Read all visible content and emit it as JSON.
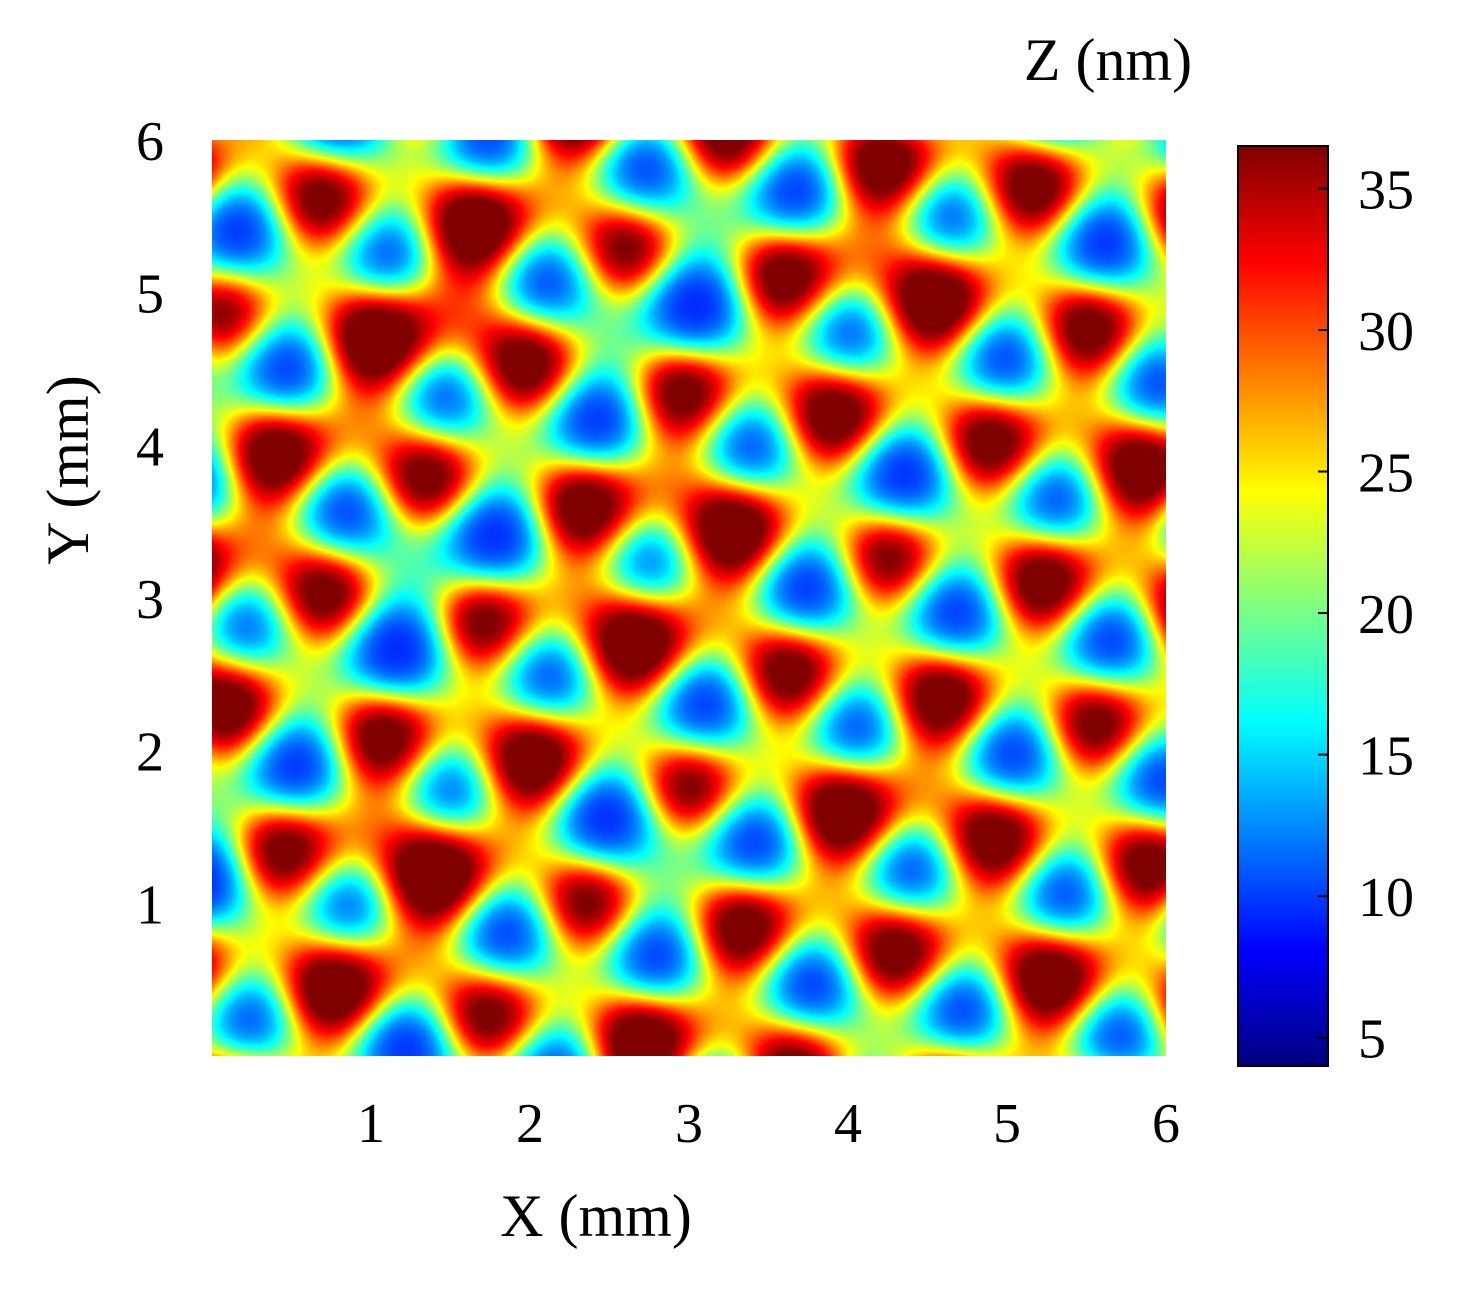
{
  "chart_data": {
    "type": "heatmap",
    "xlabel": "X (mm)",
    "ylabel": "Y (mm)",
    "colorbar_label": "Z (nm)",
    "xlim": [
      0,
      6
    ],
    "ylim": [
      0,
      6
    ],
    "x_ticks": [
      1,
      2,
      3,
      4,
      5,
      6
    ],
    "y_ticks": [
      1,
      2,
      3,
      4,
      5,
      6
    ],
    "clim": [
      4,
      36.5
    ],
    "colorbar_ticks": [
      5,
      10,
      15,
      20,
      25,
      30,
      35
    ],
    "colormap": "jet",
    "grid": false,
    "surface_model": {
      "mean_nm": 24.5,
      "amplitude_nm": 19.5,
      "lattice_period_mm": 0.85
    }
  },
  "colors": {
    "jet_stops": [
      "#00007f",
      "#0000ff",
      "#00ffff",
      "#ffff00",
      "#ff0000",
      "#7f0000"
    ]
  }
}
